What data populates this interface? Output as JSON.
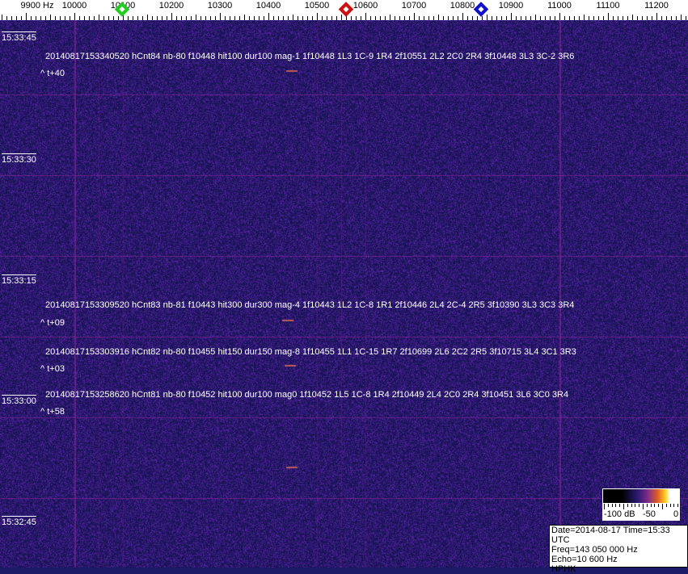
{
  "freq_axis": {
    "unit_label": "9900 Hz",
    "ticks": [
      "10000",
      "10100",
      "10200",
      "10300",
      "10400",
      "10500",
      "10600",
      "10700",
      "10800",
      "10900",
      "11000",
      "11100",
      "11200"
    ],
    "tick_values": [
      9900,
      10000,
      10100,
      10200,
      10300,
      10400,
      10500,
      10600,
      10700,
      10800,
      10900,
      11000,
      11100,
      11200
    ]
  },
  "markers": [
    {
      "name": "green",
      "freq": 10098,
      "color": "#22cc22"
    },
    {
      "name": "red",
      "freq": 10560,
      "color": "#cc1111"
    },
    {
      "name": "blue",
      "freq": 10838,
      "color": "#1111cc"
    }
  ],
  "time_labels": [
    "15:33:45",
    "15:33:30",
    "15:33:15",
    "15:33:00",
    "15:32:45"
  ],
  "echoes": [
    {
      "text": "20140817153340520 hCnt84 nb-80 f10448 hit100 dur100 mag-1 1f10448 1L3 1C-9 1R4 2f10551 2L2 2C0 2R4 3f10448 3L3 3C-2 3R6",
      "delta": "^ t+40"
    },
    {
      "text": "20140817153309520 hCnt83 nb-81 f10443 hit300 dur300 mag-4 1f10443 1L2 1C-8 1R1 2f10446 2L4 2C-4 2R5 3f10390 3L3 3C3 3R4",
      "delta": "^ t+09"
    },
    {
      "text": "20140817153303916 hCnt82 nb-80 f10455 hit150 dur150 mag-8 1f10455 1L1 1C-15 1R7 2f10699 2L6 2C2 2R5 3f10715 3L4 3C1 3R3",
      "delta": "^ t+03"
    },
    {
      "text": "20140817153258620 hCnt81 nb-80 f10452 hit100 dur100 mag0 1f10452 1L5 1C-8 1R4 2f10449 2L4 2C0 2R4 3f10451 3L6 3C0 3R4",
      "delta": "^ t+58"
    }
  ],
  "colorbar": {
    "labels": [
      "-100 dB",
      "-50",
      "0"
    ]
  },
  "info": {
    "date_time": "Date=2014-08-17 Time=15:33 UTC",
    "freq": "Freq=143 050 000 Hz",
    "echo": "Echo=10 600 Hz",
    "station": "HPHK"
  },
  "colors": {
    "background": "#1b1a66",
    "grid": "#8a2a9a"
  }
}
